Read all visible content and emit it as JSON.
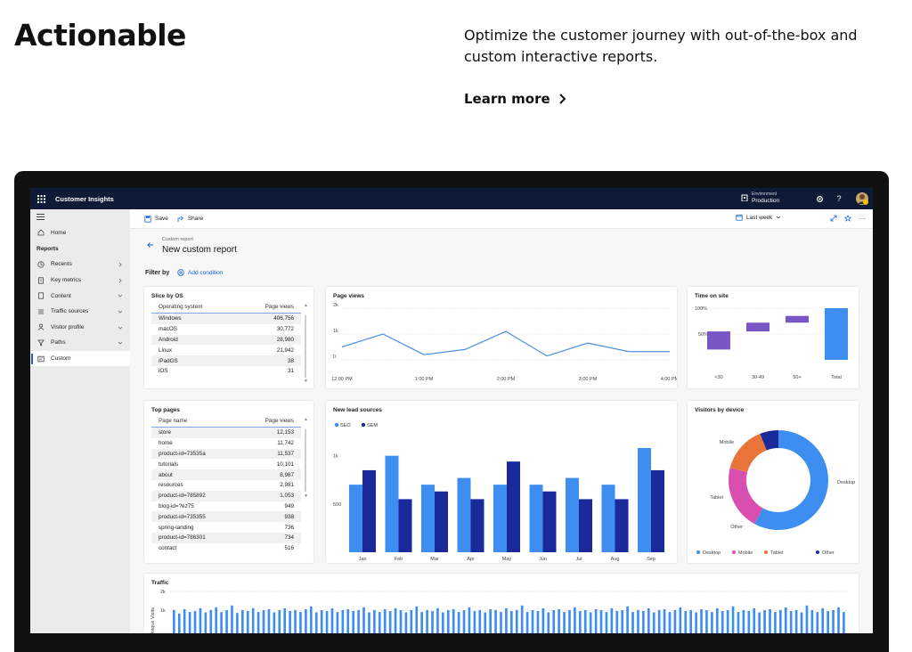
{
  "hero": {
    "title": "Actionable",
    "description": "Optimize the customer journey with out-of-the-box and custom interactive reports.",
    "learn_more": "Learn more"
  },
  "app": {
    "title": "Customer Insights",
    "env_label": "Environment",
    "env_value": "Production"
  },
  "sidebar": {
    "section": "Reports",
    "home": "Home",
    "items": [
      {
        "label": "Recents",
        "icon": "clock-icon"
      },
      {
        "label": "Key metrics",
        "icon": "document-icon"
      },
      {
        "label": "Content",
        "icon": "page-icon"
      },
      {
        "label": "Traffic sources",
        "icon": "traffic-icon"
      },
      {
        "label": "Visitor profile",
        "icon": "person-icon"
      },
      {
        "label": "Paths",
        "icon": "funnel-icon"
      },
      {
        "label": "Custom",
        "icon": "custom-report-icon"
      }
    ]
  },
  "cmdbar": {
    "save": "Save",
    "share": "Share",
    "range": "Last week"
  },
  "report": {
    "crumb": "Custom report",
    "title": "New custom report",
    "filter_by": "Filter by",
    "add_condition": "Add condition"
  },
  "slice_os": {
    "title": "Slice by OS",
    "col1": "Operating system",
    "col2": "Page views",
    "rows": [
      {
        "name": "Windows",
        "value": "406,756"
      },
      {
        "name": "macOS",
        "value": "30,772"
      },
      {
        "name": "Android",
        "value": "28,980"
      },
      {
        "name": "Linux",
        "value": "21,942"
      },
      {
        "name": "iPadOS",
        "value": "38"
      },
      {
        "name": "iOS",
        "value": "31"
      }
    ]
  },
  "top_pages": {
    "title": "Top pages",
    "col1": "Page name",
    "col2": "Page views",
    "rows": [
      {
        "name": "store",
        "value": "12,153"
      },
      {
        "name": "home",
        "value": "11,742"
      },
      {
        "name": "product-id=73535a",
        "value": "11,537"
      },
      {
        "name": "tutorials",
        "value": "10,101"
      },
      {
        "name": "about",
        "value": "8,987"
      },
      {
        "name": "resources",
        "value": "2,981"
      },
      {
        "name": "product-id=785892",
        "value": "1,053"
      },
      {
        "name": "blog-id=?ez75",
        "value": "949"
      },
      {
        "name": "product-id=735355",
        "value": "938"
      },
      {
        "name": "spring-landing",
        "value": "736"
      },
      {
        "name": "product-id=786301",
        "value": "734"
      },
      {
        "name": "contact",
        "value": "516"
      }
    ]
  },
  "chart_data": [
    {
      "type": "line",
      "title": "Page views",
      "x": [
        "12:00 PM",
        "",
        "1:00 PM",
        "",
        "2:00 PM",
        "",
        "3:00 PM",
        "",
        "4:00 PM"
      ],
      "xticks": [
        "12:00 PM",
        "1:00 PM",
        "2:00 PM",
        "3:00 PM",
        "4:00 PM"
      ],
      "yticks": [
        "2k",
        "1k",
        "0"
      ],
      "ylim": [
        0,
        2000
      ],
      "values": [
        500,
        1000,
        200,
        400,
        1100,
        150,
        650,
        320,
        320
      ],
      "color": "#4a90e2"
    },
    {
      "type": "bar",
      "title": "Time on site",
      "categories": [
        "<30",
        "30-49",
        "50+",
        "Total"
      ],
      "yticks": [
        "100%",
        "50%"
      ],
      "waterfall": [
        [
          20,
          55
        ],
        [
          55,
          72
        ],
        [
          72,
          85
        ],
        [
          0,
          100
        ]
      ],
      "colors": [
        "#7a55c6",
        "#7a55c6",
        "#7a55c6",
        "#3d8ef0"
      ]
    },
    {
      "type": "bar",
      "title": "New lead sources",
      "categories": [
        "Jan",
        "Feb",
        "Mar",
        "Apr",
        "May",
        "Jun",
        "Jul",
        "Aug",
        "Sep"
      ],
      "yticks": [
        "1k",
        "500"
      ],
      "ylim": [
        0,
        1200
      ],
      "series": [
        {
          "name": "SEO",
          "color": "#3d8ef0",
          "values": [
            700,
            1000,
            700,
            770,
            700,
            700,
            770,
            700,
            1080
          ]
        },
        {
          "name": "SEM",
          "color": "#1a2a9a",
          "values": [
            850,
            550,
            630,
            550,
            940,
            630,
            550,
            550,
            850
          ]
        }
      ]
    },
    {
      "type": "pie",
      "title": "Visitors by device",
      "labels": [
        "Desktop",
        "Mobile",
        "Tablet",
        "Other"
      ],
      "values": [
        58,
        21,
        15,
        6
      ],
      "colors": [
        "#3d8ef0",
        "#d94fb0",
        "#e8743b",
        "#1a2a9a"
      ]
    },
    {
      "type": "bar",
      "title": "Traffic",
      "ylabel": "Unique Visits",
      "yticks": [
        "2k",
        "1k"
      ],
      "ylim": [
        0,
        2000
      ],
      "values": [
        1000,
        820,
        1050,
        900,
        950,
        1100,
        880,
        1000,
        1150,
        900,
        1000,
        1250,
        850,
        1000,
        950,
        1100,
        900,
        1000,
        1050,
        880,
        1000,
        1100,
        950,
        1000,
        900,
        1050,
        1200,
        880,
        1000,
        950,
        1100,
        900,
        1000,
        1050,
        950,
        1000,
        1150,
        880,
        1000,
        900,
        1050,
        950,
        1100,
        1000,
        880,
        1000,
        1200,
        900,
        1000,
        950,
        1100,
        880,
        1000,
        1050,
        900,
        1000,
        1150,
        950,
        1000,
        880,
        1050,
        1000,
        900,
        1100,
        950,
        1000,
        1250,
        900,
        1000,
        950,
        1100,
        880,
        1000,
        1050,
        900,
        1000,
        1150,
        950,
        1000,
        880,
        1050,
        1000,
        900,
        1100,
        950,
        1000,
        1200,
        900,
        1000,
        950,
        1100,
        880,
        1000,
        1050,
        900,
        1000,
        1150,
        950,
        1000,
        880,
        1050,
        1000,
        900,
        1100,
        950,
        1000,
        1200,
        900,
        1000,
        950,
        1100,
        880,
        1000,
        1050,
        900,
        1000,
        1150,
        950,
        1000,
        880,
        1250,
        1000,
        900,
        1100,
        950,
        1000,
        1150,
        900
      ],
      "color": "#3d8ef0"
    }
  ]
}
